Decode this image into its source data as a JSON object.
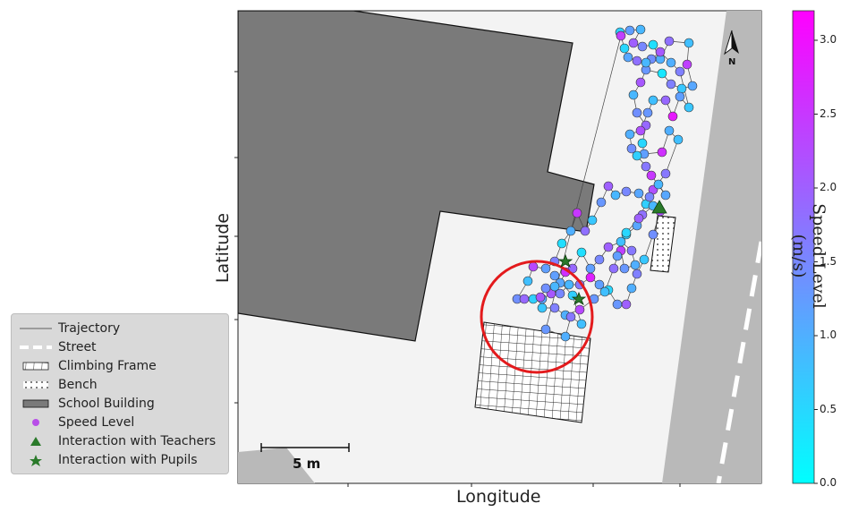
{
  "map": {
    "xlabel": "Longitude",
    "ylabel": "Latitude",
    "scale_bar_label": "5 m",
    "north_label": "N",
    "colors": {
      "background": "#f3f3f3",
      "building": "#7a7a7a",
      "street_band": "#b9b9b9",
      "street_dash": "#ffffff",
      "highlight_circle": "#e31a1c",
      "interaction_marker": "#2a7a2a",
      "trajectory": "#444444"
    }
  },
  "legend": {
    "items": [
      {
        "label": "Trajectory",
        "symbol": "line"
      },
      {
        "label": "Street",
        "symbol": "dash"
      },
      {
        "label": "Climbing Frame",
        "symbol": "grid"
      },
      {
        "label": "Bench",
        "symbol": "dots"
      },
      {
        "label": "School Building",
        "symbol": "building"
      },
      {
        "label": "Speed Level",
        "symbol": "circle"
      },
      {
        "label": "Interaction with Teachers",
        "symbol": "triangle"
      },
      {
        "label": "Interaction with Pupils",
        "symbol": "star"
      }
    ]
  },
  "colorbar": {
    "title": "Speed Level (m/s)",
    "ticks": [
      "0.0",
      "0.5",
      "1.0",
      "1.5",
      "2.0",
      "2.5",
      "3.0"
    ],
    "min": 0.0,
    "max": 3.2,
    "color_low": "#00ffff",
    "color_high": "#ff00ff"
  },
  "chart_data": {
    "type": "scatter",
    "xlabel": "Longitude",
    "ylabel": "Latitude",
    "colorbar_label": "Speed Level (m/s)",
    "colorbar_range": [
      0.0,
      3.2
    ],
    "series": [
      {
        "name": "Speed Level",
        "values": [
          0.6,
          1.2,
          0.9,
          2.0,
          1.5,
          0.4,
          1.0,
          1.8,
          0.8,
          2.4,
          1.1,
          0.7,
          1.6,
          0.3,
          1.3,
          2.1,
          0.9,
          1.4,
          1.9,
          0.5,
          1.2,
          2.6,
          1.0,
          0.8,
          1.7,
          2.2,
          0.6,
          1.1,
          1.5,
          0.9,
          2.0,
          1.3,
          0.7,
          1.8,
          2.5,
          1.0,
          0.4,
          1.6,
          1.2,
          2.3,
          0.8,
          1.4,
          1.9,
          0.6,
          1.1,
          2.1,
          1.5,
          0.9,
          1.7,
          2.8,
          1.2,
          0.5,
          1.3,
          2.0,
          1.0,
          1.6,
          0.7,
          1.4,
          2.2,
          0.9,
          1.8,
          1.1,
          0.6,
          2.4,
          1.3,
          1.0,
          1.7,
          0.8,
          2.0,
          1.5,
          1.2,
          0.4,
          1.9,
          2.6,
          1.1,
          0.9,
          1.4,
          2.1,
          0.7,
          1.6,
          1.0,
          2.3,
          1.3,
          0.8,
          1.8,
          1.2,
          0.5,
          2.0,
          1.5,
          0.9,
          1.1,
          2.5,
          1.7,
          0.6,
          1.4,
          1.0,
          2.2,
          1.3,
          0.8,
          1.9,
          2.9,
          1.2,
          0.7,
          1.6,
          1.0,
          2.1,
          1.4,
          0.9,
          1.8,
          1.1,
          0.5,
          2.4,
          1.3,
          1.0,
          1.7,
          0.8
        ]
      }
    ],
    "legend": [
      "Trajectory",
      "Street",
      "Climbing Frame",
      "Bench",
      "School Building",
      "Speed Level",
      "Interaction with Teachers",
      "Interaction with Pupils"
    ],
    "teacher_interactions": 1,
    "pupil_interactions": 2
  }
}
